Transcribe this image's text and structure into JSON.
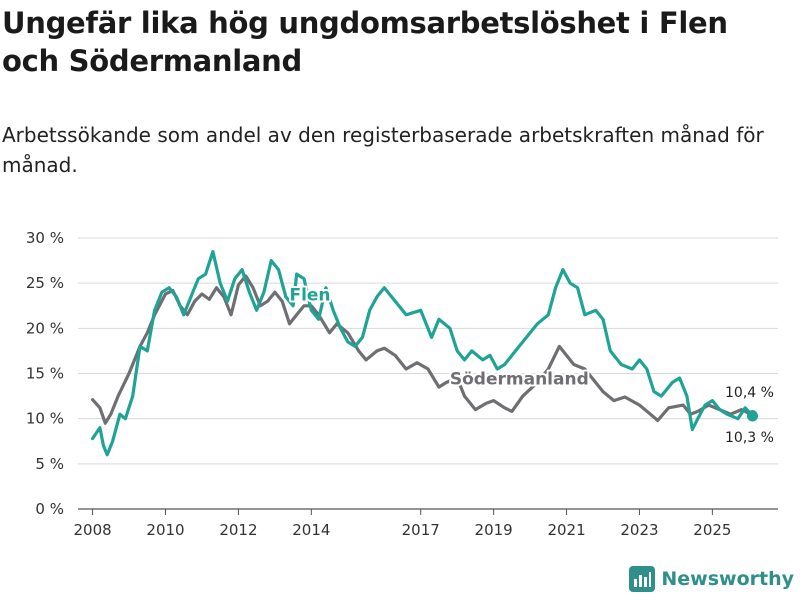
{
  "title": "Ungefär lika hög ungdomsarbetslöshet i Flen och Södermanland",
  "subtitle": "Arbetssökande som andel av den registerbaserade arbetskraften månad för månad.",
  "brand": {
    "name": "Newsworthy",
    "icon": "newsworthy-logo-icon",
    "color": "#2f8f8a"
  },
  "chart_data": {
    "type": "line",
    "title": "",
    "xlabel": "",
    "ylabel": "",
    "x_range": [
      2007.6,
      2026.8
    ],
    "ylim": [
      0,
      30
    ],
    "grid": true,
    "y_ticks": [
      0,
      5,
      10,
      15,
      20,
      25,
      30
    ],
    "y_tick_labels": [
      "0 %",
      "5 %",
      "10 %",
      "15 %",
      "20 %",
      "25 %",
      "30 %"
    ],
    "x_ticks": [
      2008,
      2010,
      2012,
      2014,
      2017,
      2019,
      2021,
      2023,
      2025
    ],
    "x_tick_labels": [
      "2008",
      "2010",
      "2012",
      "2014",
      "2017",
      "2019",
      "2021",
      "2023",
      "2025"
    ],
    "series": [
      {
        "name": "Södermanland",
        "label": "Södermanland",
        "color": "#6e6e73",
        "end_value_label": "10,4 %",
        "points": [
          [
            2008.0,
            12.1
          ],
          [
            2008.2,
            11.2
          ],
          [
            2008.35,
            9.5
          ],
          [
            2008.5,
            10.5
          ],
          [
            2008.7,
            12.5
          ],
          [
            2009.0,
            15.0
          ],
          [
            2009.3,
            18.0
          ],
          [
            2009.5,
            19.5
          ],
          [
            2009.7,
            21.5
          ],
          [
            2010.0,
            23.8
          ],
          [
            2010.2,
            24.2
          ],
          [
            2010.4,
            22.5
          ],
          [
            2010.6,
            21.5
          ],
          [
            2010.8,
            23.0
          ],
          [
            2011.0,
            23.8
          ],
          [
            2011.2,
            23.2
          ],
          [
            2011.4,
            24.5
          ],
          [
            2011.6,
            23.5
          ],
          [
            2011.8,
            21.5
          ],
          [
            2012.0,
            24.8
          ],
          [
            2012.2,
            25.8
          ],
          [
            2012.4,
            24.5
          ],
          [
            2012.6,
            22.5
          ],
          [
            2012.8,
            23.0
          ],
          [
            2013.0,
            24.0
          ],
          [
            2013.2,
            23.0
          ],
          [
            2013.4,
            20.5
          ],
          [
            2013.6,
            21.5
          ],
          [
            2013.8,
            22.5
          ],
          [
            2014.0,
            22.5
          ],
          [
            2014.2,
            21.5
          ],
          [
            2014.5,
            19.5
          ],
          [
            2014.7,
            20.5
          ],
          [
            2015.0,
            19.5
          ],
          [
            2015.3,
            17.5
          ],
          [
            2015.5,
            16.5
          ],
          [
            2015.8,
            17.5
          ],
          [
            2016.0,
            17.8
          ],
          [
            2016.3,
            17.0
          ],
          [
            2016.6,
            15.5
          ],
          [
            2016.9,
            16.2
          ],
          [
            2017.2,
            15.5
          ],
          [
            2017.5,
            13.5
          ],
          [
            2017.7,
            14.0
          ],
          [
            2018.0,
            14.5
          ],
          [
            2018.2,
            12.5
          ],
          [
            2018.5,
            11.0
          ],
          [
            2018.8,
            11.7
          ],
          [
            2019.0,
            12.0
          ],
          [
            2019.3,
            11.2
          ],
          [
            2019.5,
            10.8
          ],
          [
            2019.8,
            12.5
          ],
          [
            2020.2,
            14.0
          ],
          [
            2020.5,
            15.5
          ],
          [
            2020.8,
            18.0
          ],
          [
            2021.0,
            17.0
          ],
          [
            2021.2,
            16.0
          ],
          [
            2021.5,
            15.5
          ],
          [
            2021.8,
            14.0
          ],
          [
            2022.0,
            13.0
          ],
          [
            2022.3,
            12.0
          ],
          [
            2022.6,
            12.4
          ],
          [
            2023.0,
            11.5
          ],
          [
            2023.3,
            10.5
          ],
          [
            2023.5,
            9.8
          ],
          [
            2023.8,
            11.2
          ],
          [
            2024.2,
            11.5
          ],
          [
            2024.4,
            10.5
          ],
          [
            2024.6,
            10.8
          ],
          [
            2024.9,
            11.5
          ],
          [
            2025.2,
            11.0
          ],
          [
            2025.5,
            10.5
          ],
          [
            2025.8,
            11.0
          ],
          [
            2026.1,
            10.4
          ]
        ]
      },
      {
        "name": "Flen",
        "label": "Flen",
        "color": "#1fa396",
        "end_value_label": "10,3 %",
        "points": [
          [
            2008.0,
            7.8
          ],
          [
            2008.2,
            9.0
          ],
          [
            2008.3,
            7.0
          ],
          [
            2008.4,
            6.0
          ],
          [
            2008.55,
            7.5
          ],
          [
            2008.75,
            10.5
          ],
          [
            2008.9,
            10.0
          ],
          [
            2009.1,
            12.5
          ],
          [
            2009.3,
            18.0
          ],
          [
            2009.5,
            17.5
          ],
          [
            2009.7,
            22.0
          ],
          [
            2009.9,
            24.0
          ],
          [
            2010.1,
            24.5
          ],
          [
            2010.3,
            23.5
          ],
          [
            2010.5,
            21.5
          ],
          [
            2010.7,
            23.5
          ],
          [
            2010.9,
            25.5
          ],
          [
            2011.1,
            26.0
          ],
          [
            2011.3,
            28.5
          ],
          [
            2011.5,
            25.0
          ],
          [
            2011.7,
            23.0
          ],
          [
            2011.9,
            25.5
          ],
          [
            2012.1,
            26.5
          ],
          [
            2012.3,
            24.0
          ],
          [
            2012.5,
            22.0
          ],
          [
            2012.7,
            24.0
          ],
          [
            2012.9,
            27.5
          ],
          [
            2013.1,
            26.5
          ],
          [
            2013.3,
            23.5
          ],
          [
            2013.5,
            22.5
          ],
          [
            2013.6,
            26.0
          ],
          [
            2013.8,
            25.5
          ],
          [
            2014.0,
            22.0
          ],
          [
            2014.2,
            21.0
          ],
          [
            2014.4,
            24.5
          ],
          [
            2014.6,
            22.0
          ],
          [
            2014.8,
            20.0
          ],
          [
            2015.0,
            18.5
          ],
          [
            2015.2,
            18.0
          ],
          [
            2015.4,
            19.0
          ],
          [
            2015.6,
            22.0
          ],
          [
            2015.8,
            23.5
          ],
          [
            2016.0,
            24.5
          ],
          [
            2016.3,
            23.0
          ],
          [
            2016.6,
            21.5
          ],
          [
            2017.0,
            22.0
          ],
          [
            2017.3,
            19.0
          ],
          [
            2017.5,
            21.0
          ],
          [
            2017.8,
            20.0
          ],
          [
            2018.0,
            17.5
          ],
          [
            2018.2,
            16.5
          ],
          [
            2018.4,
            17.5
          ],
          [
            2018.7,
            16.5
          ],
          [
            2018.9,
            17.0
          ],
          [
            2019.1,
            15.5
          ],
          [
            2019.3,
            16.0
          ],
          [
            2019.6,
            17.5
          ],
          [
            2019.9,
            19.0
          ],
          [
            2020.2,
            20.5
          ],
          [
            2020.5,
            21.5
          ],
          [
            2020.7,
            24.5
          ],
          [
            2020.9,
            26.5
          ],
          [
            2021.1,
            25.0
          ],
          [
            2021.3,
            24.5
          ],
          [
            2021.5,
            21.5
          ],
          [
            2021.8,
            22.0
          ],
          [
            2022.0,
            21.0
          ],
          [
            2022.2,
            17.5
          ],
          [
            2022.5,
            16.0
          ],
          [
            2022.8,
            15.5
          ],
          [
            2023.0,
            16.5
          ],
          [
            2023.2,
            15.5
          ],
          [
            2023.4,
            13.0
          ],
          [
            2023.6,
            12.5
          ],
          [
            2023.9,
            14.0
          ],
          [
            2024.1,
            14.5
          ],
          [
            2024.3,
            12.5
          ],
          [
            2024.45,
            8.8
          ],
          [
            2024.6,
            10.0
          ],
          [
            2024.8,
            11.5
          ],
          [
            2025.0,
            12.0
          ],
          [
            2025.2,
            11.0
          ],
          [
            2025.4,
            10.5
          ],
          [
            2025.7,
            10.0
          ],
          [
            2025.9,
            11.2
          ],
          [
            2026.1,
            10.3
          ]
        ]
      }
    ]
  }
}
